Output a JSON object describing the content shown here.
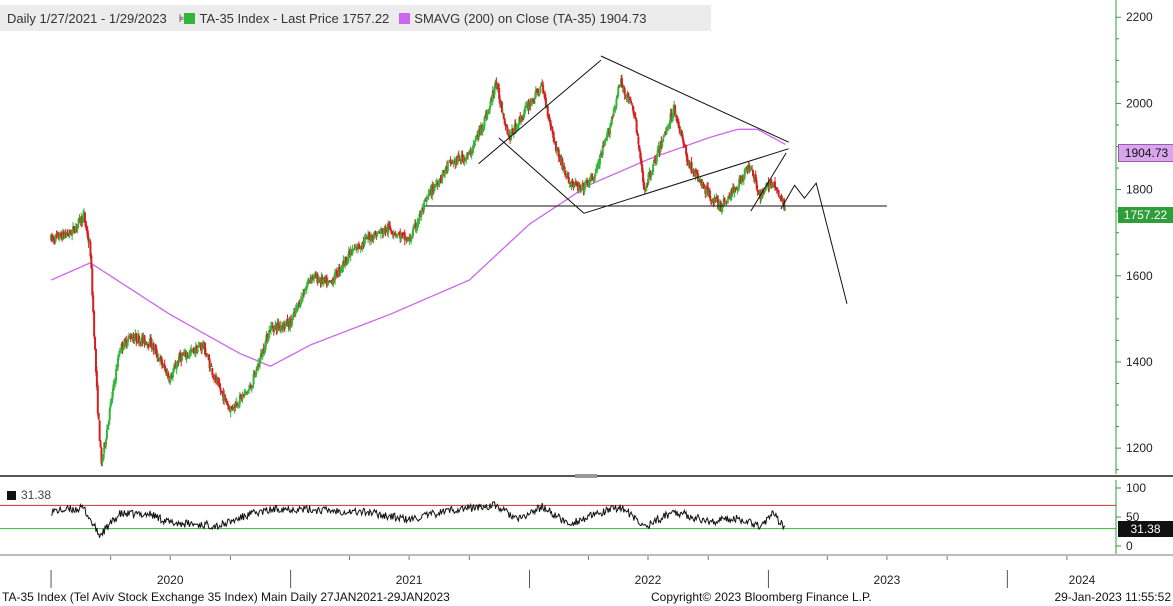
{
  "legend": {
    "range": "Daily 1/27/2021 - 1/29/2023",
    "series_price": "TA-35 Index - Last Price 1757.22",
    "series_sma": "SMAVG (200)  on Close (TA-35) 1904.73"
  },
  "rsi_legend": "31.38",
  "footer": {
    "left": "TA-35 Index (Tel Aviv Stock Exchange 35 Index) Main  Daily 27JAN2021-29JAN2023",
    "center": "Copyright© 2023 Bloomberg Finance L.P.",
    "right": "29-Jan-2023 11:55:52"
  },
  "tags": {
    "sma": "1904.73",
    "price": "1757.22",
    "rsi": "31.38"
  },
  "colors": {
    "up": "#34b53a",
    "down": "#d42020",
    "sma": "#cc66ee",
    "rsi_upper": "#c0392b",
    "rsi_lower": "#34b53a",
    "axis": "#2e9e3a"
  },
  "chart_data": [
    {
      "type": "candlestick",
      "title": "TA-35 Index",
      "ylim": [
        1140,
        2240
      ],
      "yticks": [
        "1200",
        "1400",
        "1600",
        "1800",
        "2000",
        "2200"
      ],
      "xticks": [
        "2020",
        "2021",
        "2022",
        "2023",
        "2024"
      ],
      "last_price": 1757.22,
      "sma_last": 1904.73,
      "price_anchors": [
        [
          "2020-01-01",
          1685
        ],
        [
          "2020-02-01",
          1700
        ],
        [
          "2020-02-20",
          1740
        ],
        [
          "2020-03-01",
          1660
        ],
        [
          "2020-03-12",
          1300
        ],
        [
          "2020-03-18",
          1160
        ],
        [
          "2020-04-01",
          1300
        ],
        [
          "2020-04-15",
          1430
        ],
        [
          "2020-05-01",
          1460
        ],
        [
          "2020-06-01",
          1445
        ],
        [
          "2020-07-01",
          1360
        ],
        [
          "2020-07-15",
          1410
        ],
        [
          "2020-08-01",
          1420
        ],
        [
          "2020-08-20",
          1440
        ],
        [
          "2020-09-10",
          1350
        ],
        [
          "2020-10-01",
          1290
        ],
        [
          "2020-11-01",
          1340
        ],
        [
          "2020-12-01",
          1480
        ],
        [
          "2021-01-01",
          1490
        ],
        [
          "2021-02-01",
          1600
        ],
        [
          "2021-03-01",
          1580
        ],
        [
          "2021-04-01",
          1650
        ],
        [
          "2021-05-01",
          1690
        ],
        [
          "2021-06-01",
          1710
        ],
        [
          "2021-07-01",
          1680
        ],
        [
          "2021-08-01",
          1790
        ],
        [
          "2021-09-01",
          1860
        ],
        [
          "2021-10-01",
          1880
        ],
        [
          "2021-11-01",
          1990
        ],
        [
          "2021-11-10",
          2050
        ],
        [
          "2021-12-01",
          1920
        ],
        [
          "2022-01-01",
          2000
        ],
        [
          "2022-01-20",
          2040
        ],
        [
          "2022-02-10",
          1900
        ],
        [
          "2022-03-01",
          1820
        ],
        [
          "2022-03-20",
          1800
        ],
        [
          "2022-04-10",
          1830
        ],
        [
          "2022-05-01",
          1930
        ],
        [
          "2022-05-20",
          2050
        ],
        [
          "2022-06-10",
          1980
        ],
        [
          "2022-06-25",
          1800
        ],
        [
          "2022-07-15",
          1880
        ],
        [
          "2022-08-10",
          1990
        ],
        [
          "2022-09-01",
          1860
        ],
        [
          "2022-10-01",
          1790
        ],
        [
          "2022-10-20",
          1760
        ],
        [
          "2022-11-10",
          1800
        ],
        [
          "2022-12-05",
          1860
        ],
        [
          "2022-12-20",
          1780
        ],
        [
          "2023-01-05",
          1820
        ],
        [
          "2023-01-27",
          1757
        ]
      ],
      "sma_anchors": [
        [
          "2020-01-01",
          1590
        ],
        [
          "2020-03-01",
          1630
        ],
        [
          "2020-07-01",
          1510
        ],
        [
          "2020-10-15",
          1420
        ],
        [
          "2020-12-01",
          1390
        ],
        [
          "2021-02-01",
          1440
        ],
        [
          "2021-06-01",
          1510
        ],
        [
          "2021-10-01",
          1590
        ],
        [
          "2022-01-01",
          1720
        ],
        [
          "2022-04-01",
          1810
        ],
        [
          "2022-07-01",
          1870
        ],
        [
          "2022-10-01",
          1920
        ],
        [
          "2022-11-15",
          1940
        ],
        [
          "2022-12-15",
          1940
        ],
        [
          "2023-01-27",
          1905
        ]
      ],
      "annotations": [
        {
          "x": [
            "2021-10-15",
            "2022-04-20"
          ],
          "y": [
            1860,
            2100
          ]
        },
        {
          "x": [
            "2021-11-15",
            "2022-03-25"
          ],
          "y": [
            1920,
            1745
          ]
        },
        {
          "x": [
            "2022-03-25",
            "2023-02-01"
          ],
          "y": [
            1745,
            1895
          ]
        },
        {
          "x": [
            "2022-04-20",
            "2023-02-01"
          ],
          "y": [
            2110,
            1910
          ]
        },
        {
          "x": [
            "2021-07-25",
            "2023-07-01"
          ],
          "y": [
            1762,
            1762
          ]
        },
        {
          "x": [
            "2022-12-05",
            "2023-01-28"
          ],
          "y": [
            1750,
            1885
          ]
        },
        {
          "x": [
            "2023-01-20",
            "2023-02-10",
            "2023-02-25",
            "2023-03-15",
            "2023-05-01"
          ],
          "y": [
            1755,
            1810,
            1780,
            1815,
            1535
          ]
        }
      ]
    },
    {
      "type": "line",
      "title": "RSI",
      "ylim": [
        0,
        100
      ],
      "yticks": [
        "0",
        "50",
        "100"
      ],
      "upper_band": 70,
      "lower_band": 30,
      "last_value": 31.38,
      "anchors": [
        [
          "2020-01-01",
          60
        ],
        [
          "2020-02-20",
          65
        ],
        [
          "2020-03-15",
          18
        ],
        [
          "2020-04-15",
          55
        ],
        [
          "2020-06-01",
          55
        ],
        [
          "2020-07-01",
          40
        ],
        [
          "2020-09-15",
          35
        ],
        [
          "2020-11-01",
          55
        ],
        [
          "2020-12-15",
          65
        ],
        [
          "2021-02-15",
          62
        ],
        [
          "2021-05-01",
          58
        ],
        [
          "2021-07-01",
          45
        ],
        [
          "2021-09-01",
          62
        ],
        [
          "2021-11-10",
          70
        ],
        [
          "2021-12-15",
          45
        ],
        [
          "2022-01-20",
          68
        ],
        [
          "2022-03-01",
          38
        ],
        [
          "2022-05-20",
          68
        ],
        [
          "2022-06-25",
          33
        ],
        [
          "2022-08-10",
          60
        ],
        [
          "2022-10-01",
          42
        ],
        [
          "2022-11-15",
          48
        ],
        [
          "2022-12-20",
          35
        ],
        [
          "2023-01-08",
          55
        ],
        [
          "2023-01-27",
          31
        ]
      ]
    }
  ]
}
